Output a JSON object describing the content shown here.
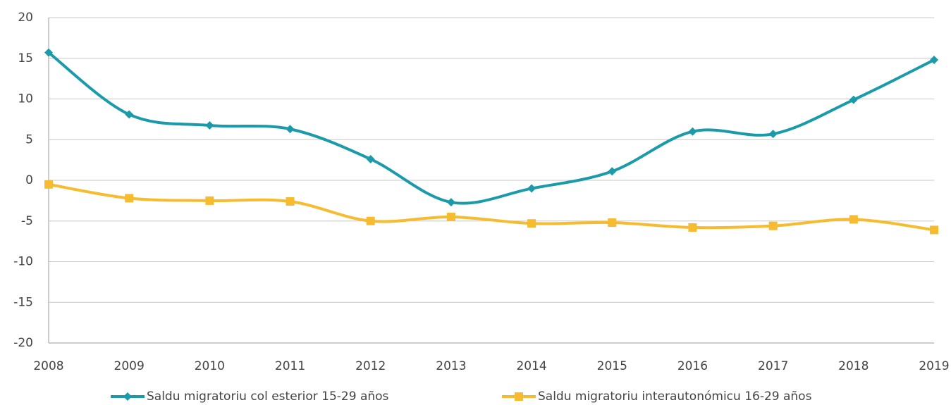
{
  "chart_data": {
    "type": "line",
    "categories": [
      "2008",
      "2009",
      "2010",
      "2011",
      "2012",
      "2013",
      "2014",
      "2015",
      "2016",
      "2017",
      "2018",
      "2019"
    ],
    "series": [
      {
        "name": "Saldu migratoriu col esterior 15-29 años",
        "color": "#1b9aaa",
        "marker": "diamond",
        "values": [
          15.7,
          8.1,
          6.75,
          6.3,
          2.6,
          -2.7,
          -1.0,
          1.1,
          6.0,
          5.7,
          9.9,
          14.8
        ]
      },
      {
        "name": "Saldu migratoriu interautonómicu 16-29 años",
        "color": "#f6bb2f",
        "marker": "square",
        "values": [
          -0.5,
          -2.2,
          -2.5,
          -2.6,
          -5.0,
          -4.5,
          -5.3,
          -5.2,
          -5.8,
          -5.6,
          -4.8,
          -6.1
        ]
      }
    ],
    "ylim": [
      -20,
      20
    ],
    "yticks": [
      -20,
      -15,
      -10,
      -5,
      0,
      5,
      10,
      15,
      20
    ],
    "grid": true,
    "smooth": true,
    "legend": "bottom"
  }
}
